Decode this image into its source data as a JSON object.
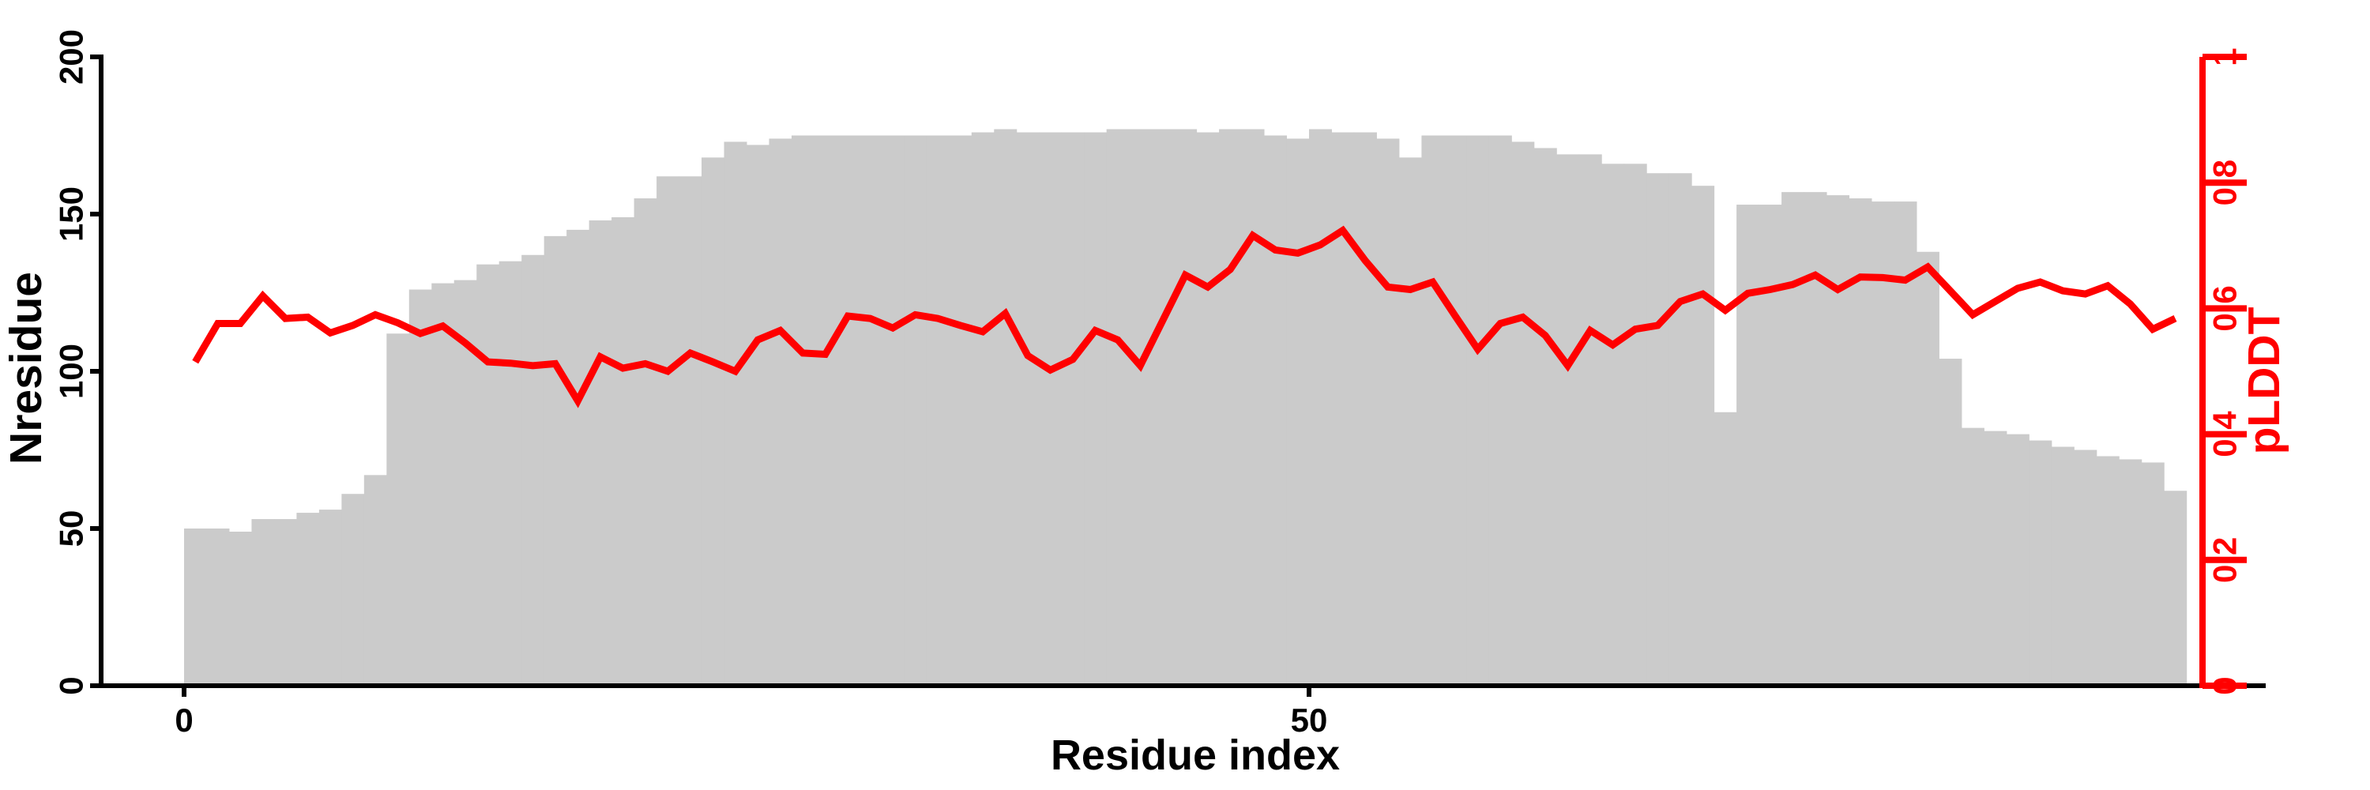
{
  "figure": {
    "background": "#ffffff",
    "bar_color": "#cbcbcb",
    "line_color": "#ff0000",
    "axis_color": "#000000",
    "right_axis_color": "#ff0000"
  },
  "chart_data": {
    "type": "bar",
    "title": "",
    "xlabel": "Residue index",
    "x_start": 0,
    "x_step": 1,
    "grid": false,
    "legend": null,
    "axes": {
      "left": {
        "label": "Nresidue",
        "range": [
          0,
          200
        ],
        "ticks": [
          0,
          50,
          100,
          150,
          200
        ],
        "tick_labels": [
          "0",
          "50",
          "100",
          "150",
          "200"
        ],
        "color": "#000000"
      },
      "right": {
        "label": "pLDDT",
        "range": [
          0,
          1
        ],
        "ticks": [
          0,
          0.2,
          0.4,
          0.6,
          0.8,
          1
        ],
        "tick_labels": [
          "0",
          "0.2",
          "0.4",
          "0.6",
          "0.8",
          "1"
        ],
        "color": "#ff0000"
      },
      "bottom": {
        "label": "Residue index",
        "ticks": [
          0,
          50
        ],
        "tick_labels": [
          "0",
          "50"
        ],
        "color": "#000000"
      }
    },
    "series": [
      {
        "name": "Nresidue",
        "type": "bar",
        "axis": "left",
        "color": "#cbcbcb",
        "values": [
          50,
          50,
          49,
          53,
          53,
          55,
          56,
          61,
          67,
          112,
          126,
          128,
          129,
          134,
          135,
          137,
          143,
          145,
          148,
          149,
          155,
          162,
          162,
          168,
          173,
          172,
          174,
          175,
          175,
          175,
          175,
          175,
          175,
          175,
          175,
          176,
          177,
          176,
          176,
          176,
          176,
          177,
          177,
          177,
          177,
          176,
          177,
          177,
          175,
          174,
          177,
          176,
          176,
          174,
          168,
          175,
          175,
          175,
          175,
          173,
          171,
          169,
          169,
          166,
          166,
          163,
          163,
          159,
          87,
          153,
          153,
          157,
          157,
          156,
          155,
          154,
          154,
          138,
          104,
          82,
          81,
          80,
          78,
          76,
          75,
          73,
          72,
          71,
          62
        ]
      },
      {
        "name": "pLDDT",
        "type": "line",
        "axis": "right",
        "color": "#ff0000",
        "values": [
          0.515,
          0.576,
          0.576,
          0.62,
          0.584,
          0.586,
          0.561,
          0.573,
          0.59,
          0.577,
          0.56,
          0.572,
          0.545,
          0.515,
          0.513,
          0.509,
          0.512,
          0.453,
          0.523,
          0.505,
          0.512,
          0.5,
          0.529,
          0.515,
          0.5,
          0.55,
          0.565,
          0.529,
          0.527,
          0.588,
          0.584,
          0.569,
          0.59,
          0.584,
          0.573,
          0.563,
          0.592,
          0.525,
          0.502,
          0.519,
          0.565,
          0.55,
          0.509,
          0.581,
          0.653,
          0.634,
          0.662,
          0.716,
          0.693,
          0.688,
          0.701,
          0.724,
          0.676,
          0.634,
          0.63,
          0.642,
          0.588,
          0.535,
          0.576,
          0.586,
          0.557,
          0.509,
          0.565,
          0.542,
          0.567,
          0.573,
          0.611,
          0.623,
          0.597,
          0.624,
          0.63,
          0.638,
          0.653,
          0.63,
          0.65,
          0.649,
          0.645,
          0.666,
          0.628,
          0.59,
          0.611,
          0.632,
          0.642,
          0.628,
          0.623,
          0.636,
          0.607,
          0.567,
          0.584
        ]
      }
    ]
  }
}
